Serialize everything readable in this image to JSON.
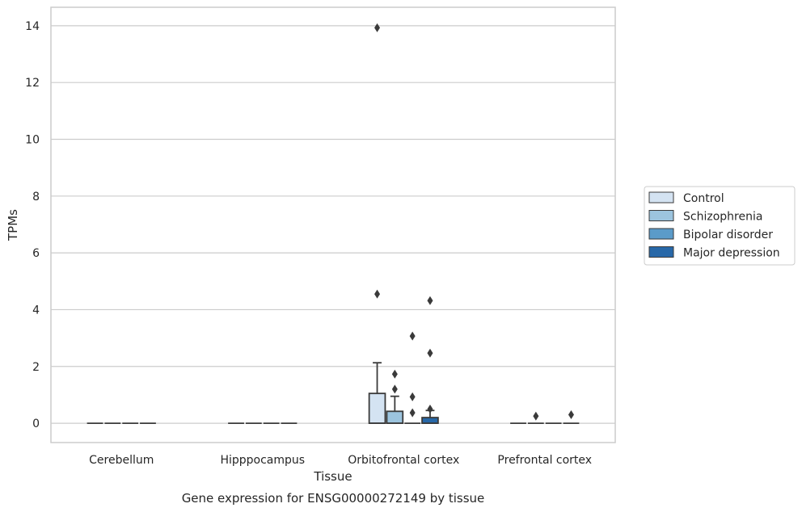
{
  "caption": "Gene expression for ENSG00000272149 by tissue",
  "chart_data": {
    "type": "box",
    "title": "",
    "xlabel": "Tissue",
    "ylabel": "TPMs",
    "ylim": [
      -0.68,
      14.65
    ],
    "yticks": [
      "0",
      "2",
      "4",
      "6",
      "8",
      "10",
      "12",
      "14"
    ],
    "grid": true,
    "legend_position": "right",
    "categories": [
      "Cerebellum",
      "Hipppocampus",
      "Orbitofrontal cortex",
      "Prefrontal cortex"
    ],
    "series": [
      {
        "name": "Control",
        "color": "#d4e3f2",
        "boxes": [
          {
            "q1": 0,
            "median": 0,
            "q3": 0,
            "whisker_low": 0,
            "whisker_high": 0,
            "outliers": []
          },
          {
            "q1": 0,
            "median": 0,
            "q3": 0,
            "whisker_low": 0,
            "whisker_high": 0,
            "outliers": []
          },
          {
            "q1": 0,
            "median": 0,
            "q3": 1.05,
            "whisker_low": 0,
            "whisker_high": 2.13,
            "outliers": [
              13.93,
              4.55
            ]
          },
          {
            "q1": 0,
            "median": 0,
            "q3": 0,
            "whisker_low": 0,
            "whisker_high": 0,
            "outliers": []
          }
        ]
      },
      {
        "name": "Schizophrenia",
        "color": "#9cc4de",
        "boxes": [
          {
            "q1": 0,
            "median": 0,
            "q3": 0,
            "whisker_low": 0,
            "whisker_high": 0,
            "outliers": []
          },
          {
            "q1": 0,
            "median": 0,
            "q3": 0,
            "whisker_low": 0,
            "whisker_high": 0,
            "outliers": []
          },
          {
            "q1": 0,
            "median": 0,
            "q3": 0.42,
            "whisker_low": 0,
            "whisker_high": 0.95,
            "outliers": [
              1.73,
              1.2
            ]
          },
          {
            "q1": 0,
            "median": 0,
            "q3": 0,
            "whisker_low": 0,
            "whisker_high": 0,
            "outliers": [
              0.25
            ]
          }
        ]
      },
      {
        "name": "Bipolar disorder",
        "color": "#5b9bc9",
        "boxes": [
          {
            "q1": 0,
            "median": 0,
            "q3": 0,
            "whisker_low": 0,
            "whisker_high": 0,
            "outliers": []
          },
          {
            "q1": 0,
            "median": 0,
            "q3": 0,
            "whisker_low": 0,
            "whisker_high": 0,
            "outliers": []
          },
          {
            "q1": 0,
            "median": 0,
            "q3": 0,
            "whisker_low": 0,
            "whisker_high": 0,
            "outliers": [
              3.07,
              0.93,
              0.37
            ]
          },
          {
            "q1": 0,
            "median": 0,
            "q3": 0,
            "whisker_low": 0,
            "whisker_high": 0,
            "outliers": []
          }
        ]
      },
      {
        "name": "Major depression",
        "color": "#2868a8",
        "boxes": [
          {
            "q1": 0,
            "median": 0,
            "q3": 0,
            "whisker_low": 0,
            "whisker_high": 0,
            "outliers": []
          },
          {
            "q1": 0,
            "median": 0,
            "q3": 0,
            "whisker_low": 0,
            "whisker_high": 0,
            "outliers": []
          },
          {
            "q1": 0,
            "median": 0,
            "q3": 0.2,
            "whisker_low": 0,
            "whisker_high": 0.45,
            "outliers": [
              4.32,
              2.47,
              0.5
            ]
          },
          {
            "q1": 0,
            "median": 0,
            "q3": 0,
            "whisker_low": 0,
            "whisker_high": 0,
            "outliers": [
              0.3
            ]
          }
        ]
      }
    ]
  }
}
